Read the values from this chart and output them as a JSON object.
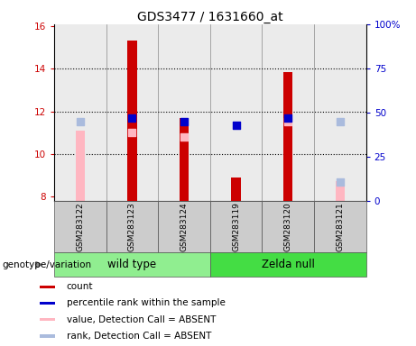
{
  "title": "GDS3477 / 1631660_at",
  "samples": [
    "GSM283122",
    "GSM283123",
    "GSM283124",
    "GSM283119",
    "GSM283120",
    "GSM283121"
  ],
  "ylim_left": [
    7.8,
    16.1
  ],
  "ylim_right": [
    0,
    100
  ],
  "yticks_left": [
    8,
    10,
    12,
    14,
    16
  ],
  "yticks_right": [
    0,
    25,
    50,
    75,
    100
  ],
  "yticklabels_right": [
    "0",
    "25",
    "50",
    "75",
    "100%"
  ],
  "count_values": [
    null,
    15.35,
    11.7,
    8.9,
    13.85,
    null
  ],
  "percentile_values": [
    null,
    47.0,
    45.0,
    43.0,
    47.0,
    null
  ],
  "absent_value_values": [
    11.1,
    null,
    null,
    null,
    null,
    8.7
  ],
  "absent_rank_values": [
    45.0,
    null,
    null,
    null,
    null,
    45.0
  ],
  "absent_value_small": [
    null,
    11.0,
    10.8,
    null,
    11.5,
    null
  ],
  "absent_rank_small": [
    null,
    null,
    null,
    null,
    null,
    10.8
  ],
  "count_color": "#CC0000",
  "percentile_color": "#0000CC",
  "absent_value_color": "#FFB6C1",
  "absent_rank_color": "#AABBDD",
  "bar_width": 0.18,
  "dot_size": 35,
  "small_dot_size": 28,
  "left_tick_color": "#CC0000",
  "right_tick_color": "#0000CC",
  "genotype_label": "genotype/variation",
  "group_spans": [
    [
      0,
      2,
      "wild type",
      "#90EE90"
    ],
    [
      3,
      5,
      "Zelda null",
      "#44DD44"
    ]
  ],
  "grid_yticks": [
    10,
    12,
    14
  ],
  "col_bg_color": "#D3D3D3"
}
